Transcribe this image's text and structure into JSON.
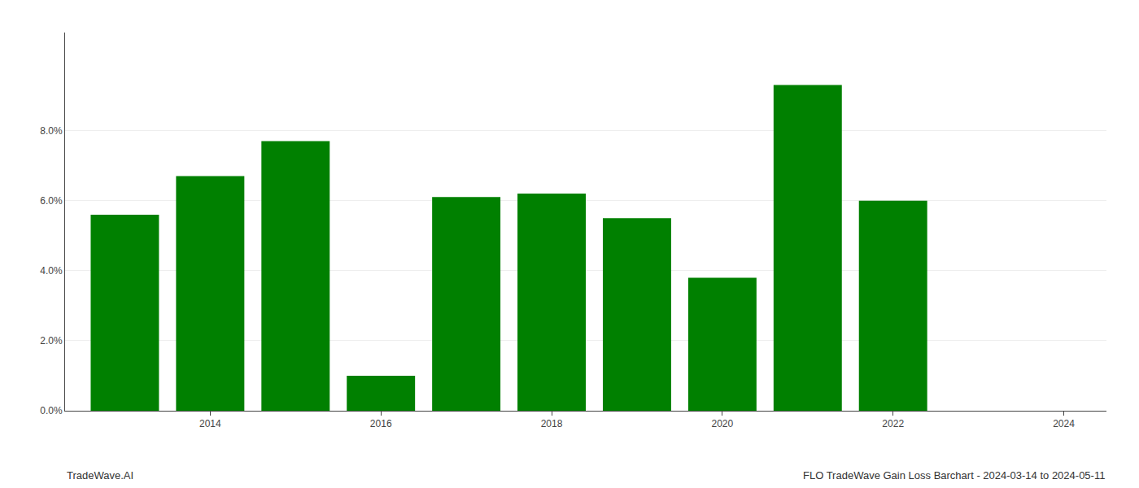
{
  "chart_data": {
    "type": "bar",
    "x": [
      2013,
      2014,
      2015,
      2016,
      2017,
      2018,
      2019,
      2020,
      2021,
      2022
    ],
    "values": [
      0.056,
      0.067,
      0.077,
      0.01,
      0.061,
      0.062,
      0.055,
      0.038,
      0.093,
      0.06
    ],
    "color": "#008000",
    "xlim": [
      2012.3,
      2024.5
    ],
    "xticks": [
      2014,
      2016,
      2018,
      2020,
      2022,
      2024
    ],
    "ylim": [
      0,
      0.108
    ],
    "yticks": [
      {
        "value": 0.0,
        "label": "0.0%"
      },
      {
        "value": 0.02,
        "label": "2.0%"
      },
      {
        "value": 0.04,
        "label": "4.0%"
      },
      {
        "value": 0.06,
        "label": "6.0%"
      },
      {
        "value": 0.08,
        "label": "8.0%"
      }
    ],
    "grid": true,
    "annotations": [
      "TradeWave.AI",
      "FLO TradeWave Gain Loss Barchart - 2024-03-14 to 2024-05-11"
    ]
  }
}
